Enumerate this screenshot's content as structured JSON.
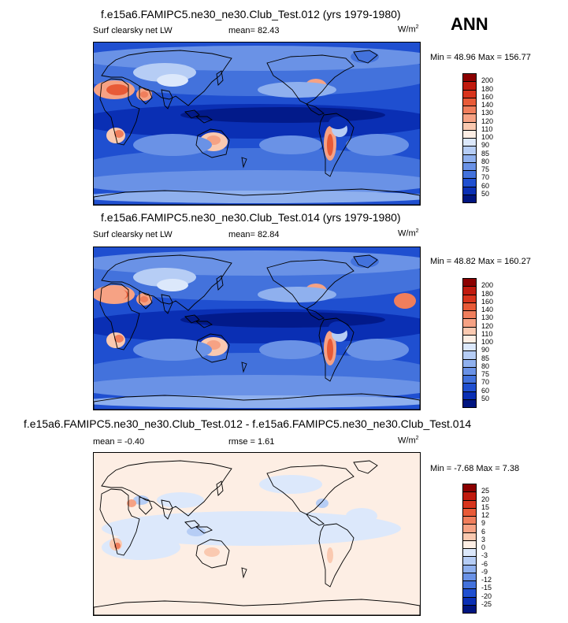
{
  "season": "ANN",
  "panels": [
    {
      "title": "f.e15a6.FAMIPC5.ne30_ne30.Club_Test.012 (yrs 1979-1980)",
      "left_label": "Surf clearsky net LW",
      "center_label": "mean=  82.43",
      "units": "W/m",
      "units_sup": "2",
      "minmax": "Min =  48.96 Max = 156.77"
    },
    {
      "title": "f.e15a6.FAMIPC5.ne30_ne30.Club_Test.014 (yrs 1979-1980)",
      "left_label": "Surf clearsky net LW",
      "center_label": "mean=  82.84",
      "units": "W/m",
      "units_sup": "2",
      "minmax": "Min =  48.82 Max = 160.27"
    },
    {
      "title": "f.e15a6.FAMIPC5.ne30_ne30.Club_Test.012 - f.e15a6.FAMIPC5.ne30_ne30.Club_Test.014",
      "left_label": "mean =  -0.40",
      "center_label": "rmse =   1.61",
      "units": "W/m",
      "units_sup": "2",
      "minmax": "Min =  -7.68 Max =   7.38"
    }
  ],
  "chart_data": [
    {
      "type": "heatmap",
      "title": "f.e15a6.FAMIPC5.ne30_ne30.Club_Test.012 (yrs 1979-1980)",
      "variable": "Surf clearsky net LW",
      "units": "W/m2",
      "mean": 82.43,
      "min": 48.96,
      "max": 156.77,
      "colorbar_levels": [
        "200",
        "180",
        "160",
        "140",
        "130",
        "120",
        "110",
        "100",
        "90",
        "85",
        "80",
        "75",
        "70",
        "60",
        "50"
      ],
      "colorbar_colors": [
        "#8b0000",
        "#c01a0e",
        "#d8341c",
        "#e85a37",
        "#f07e5c",
        "#f6a284",
        "#fac9b0",
        "#fdeee4",
        "#dce8fb",
        "#b6cdf5",
        "#8fb0ee",
        "#6a92e6",
        "#4372dc",
        "#1f4fd0",
        "#0a2fb4",
        "#001580"
      ]
    },
    {
      "type": "heatmap",
      "title": "f.e15a6.FAMIPC5.ne30_ne30.Club_Test.014 (yrs 1979-1980)",
      "variable": "Surf clearsky net LW",
      "units": "W/m2",
      "mean": 82.84,
      "min": 48.82,
      "max": 160.27,
      "colorbar_levels": [
        "200",
        "180",
        "160",
        "140",
        "130",
        "120",
        "110",
        "100",
        "90",
        "85",
        "80",
        "75",
        "70",
        "60",
        "50"
      ],
      "colorbar_colors": [
        "#8b0000",
        "#c01a0e",
        "#d8341c",
        "#e85a37",
        "#f07e5c",
        "#f6a284",
        "#fac9b0",
        "#fdeee4",
        "#dce8fb",
        "#b6cdf5",
        "#8fb0ee",
        "#6a92e6",
        "#4372dc",
        "#1f4fd0",
        "#0a2fb4",
        "#001580"
      ]
    },
    {
      "type": "heatmap",
      "title": "f.e15a6.FAMIPC5.ne30_ne30.Club_Test.012 - f.e15a6.FAMIPC5.ne30_ne30.Club_Test.014",
      "units": "W/m2",
      "mean": -0.4,
      "rmse": 1.61,
      "min": -7.68,
      "max": 7.38,
      "colorbar_levels": [
        "25",
        "20",
        "15",
        "12",
        "9",
        "6",
        "3",
        "0",
        "-3",
        "-6",
        "-9",
        "-12",
        "-15",
        "-20",
        "-25"
      ],
      "colorbar_colors": [
        "#8b0000",
        "#c01a0e",
        "#d8341c",
        "#e85a37",
        "#f07e5c",
        "#f6a284",
        "#fac9b0",
        "#fdeee4",
        "#dce8fb",
        "#b6cdf5",
        "#8fb0ee",
        "#6a92e6",
        "#4372dc",
        "#1f4fd0",
        "#0a2fb4",
        "#001580"
      ]
    }
  ]
}
